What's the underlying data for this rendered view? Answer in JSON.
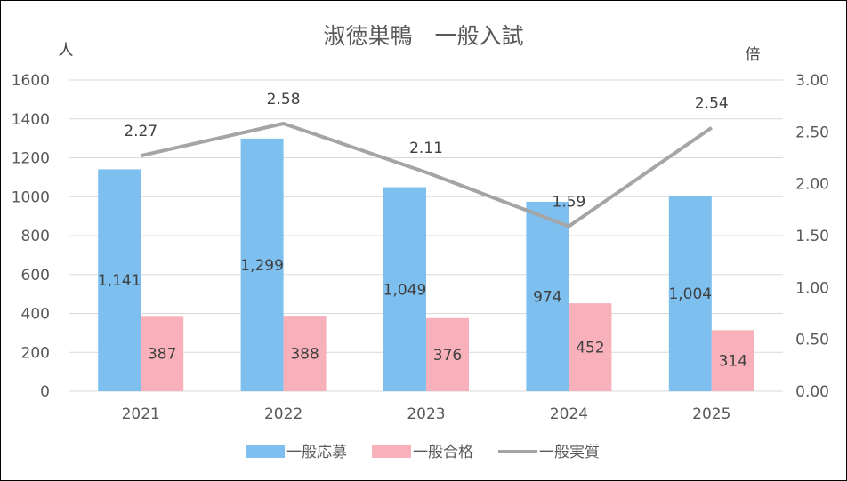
{
  "chart_data": {
    "type": "bar",
    "title": "淑徳巣鴨　一般入試",
    "y_unit_left": "人",
    "y_unit_right": "倍",
    "categories": [
      "2021",
      "2022",
      "2023",
      "2024",
      "2025"
    ],
    "left_axis": {
      "ylim": [
        0,
        1600
      ],
      "ticks": [
        "0",
        "200",
        "400",
        "600",
        "800",
        "1000",
        "1200",
        "1400",
        "1600"
      ]
    },
    "right_axis": {
      "ylim": [
        0,
        3.0
      ],
      "ticks": [
        "0.00",
        "0.50",
        "1.00",
        "1.50",
        "2.00",
        "2.50",
        "3.00"
      ]
    },
    "grid": true,
    "legend_position": "bottom",
    "series": [
      {
        "name": "一般応募",
        "type": "bar",
        "axis": "left",
        "color": "#7DBFEF",
        "values": [
          1141,
          1299,
          1049,
          974,
          1004
        ],
        "labels": [
          "1,141",
          "1,299",
          "1,049",
          "974",
          "1,004"
        ]
      },
      {
        "name": "一般合格",
        "type": "bar",
        "axis": "left",
        "color": "#F8B0BA",
        "values": [
          387,
          388,
          376,
          452,
          314
        ],
        "labels": [
          "387",
          "388",
          "376",
          "452",
          "314"
        ]
      },
      {
        "name": "一般実質",
        "type": "line",
        "axis": "right",
        "color": "#A5A5A5",
        "values": [
          2.27,
          2.58,
          2.11,
          1.59,
          2.54
        ],
        "labels": [
          "2.27",
          "2.58",
          "2.11",
          "1.59",
          "2.54"
        ]
      }
    ]
  }
}
